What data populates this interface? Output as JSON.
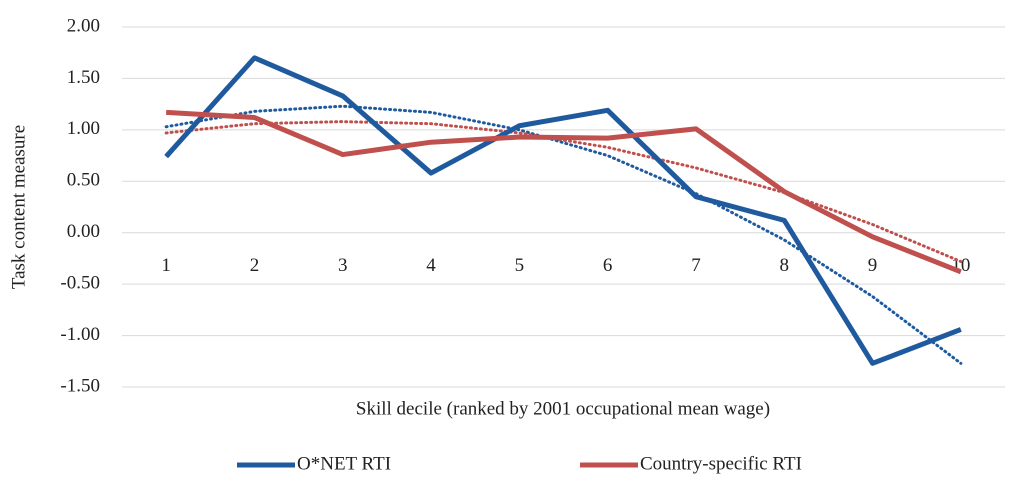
{
  "chart_data": {
    "type": "line",
    "y_label": "Task content measure",
    "x_label": "Skill decile (ranked by 2001 occupational mean wage)",
    "categories": [
      "1",
      "2",
      "3",
      "4",
      "5",
      "6",
      "7",
      "8",
      "9",
      "10"
    ],
    "series": [
      {
        "name": "O*NET RTI",
        "color": "#1f5a9e",
        "values": [
          0.74,
          1.7,
          1.33,
          0.58,
          1.04,
          1.19,
          0.35,
          0.12,
          -1.27,
          -0.94
        ],
        "trend": [
          1.03,
          1.18,
          1.23,
          1.17,
          1.0,
          0.75,
          0.38,
          -0.07,
          -0.62,
          -1.27
        ]
      },
      {
        "name": "Country-specific RTI",
        "color": "#c0504d",
        "values": [
          1.17,
          1.12,
          0.76,
          0.88,
          0.93,
          0.92,
          1.01,
          0.4,
          -0.04,
          -0.38
        ],
        "trend": [
          0.97,
          1.06,
          1.08,
          1.06,
          0.97,
          0.83,
          0.63,
          0.39,
          0.08,
          -0.28
        ]
      }
    ],
    "ylim": [
      -1.5,
      2.0
    ],
    "yticks": [
      {
        "value": -1.5,
        "label": "-1.50"
      },
      {
        "value": -1.0,
        "label": "-1.00"
      },
      {
        "value": -0.5,
        "label": "-0.50"
      },
      {
        "value": 0,
        "label": "0.00"
      },
      {
        "value": 0.5,
        "label": "0.50"
      },
      {
        "value": 1.0,
        "label": "1.00"
      },
      {
        "value": 1.5,
        "label": "1.50"
      },
      {
        "value": 2.0,
        "label": "2.00"
      }
    ],
    "grid": true,
    "legend": "bottom"
  }
}
